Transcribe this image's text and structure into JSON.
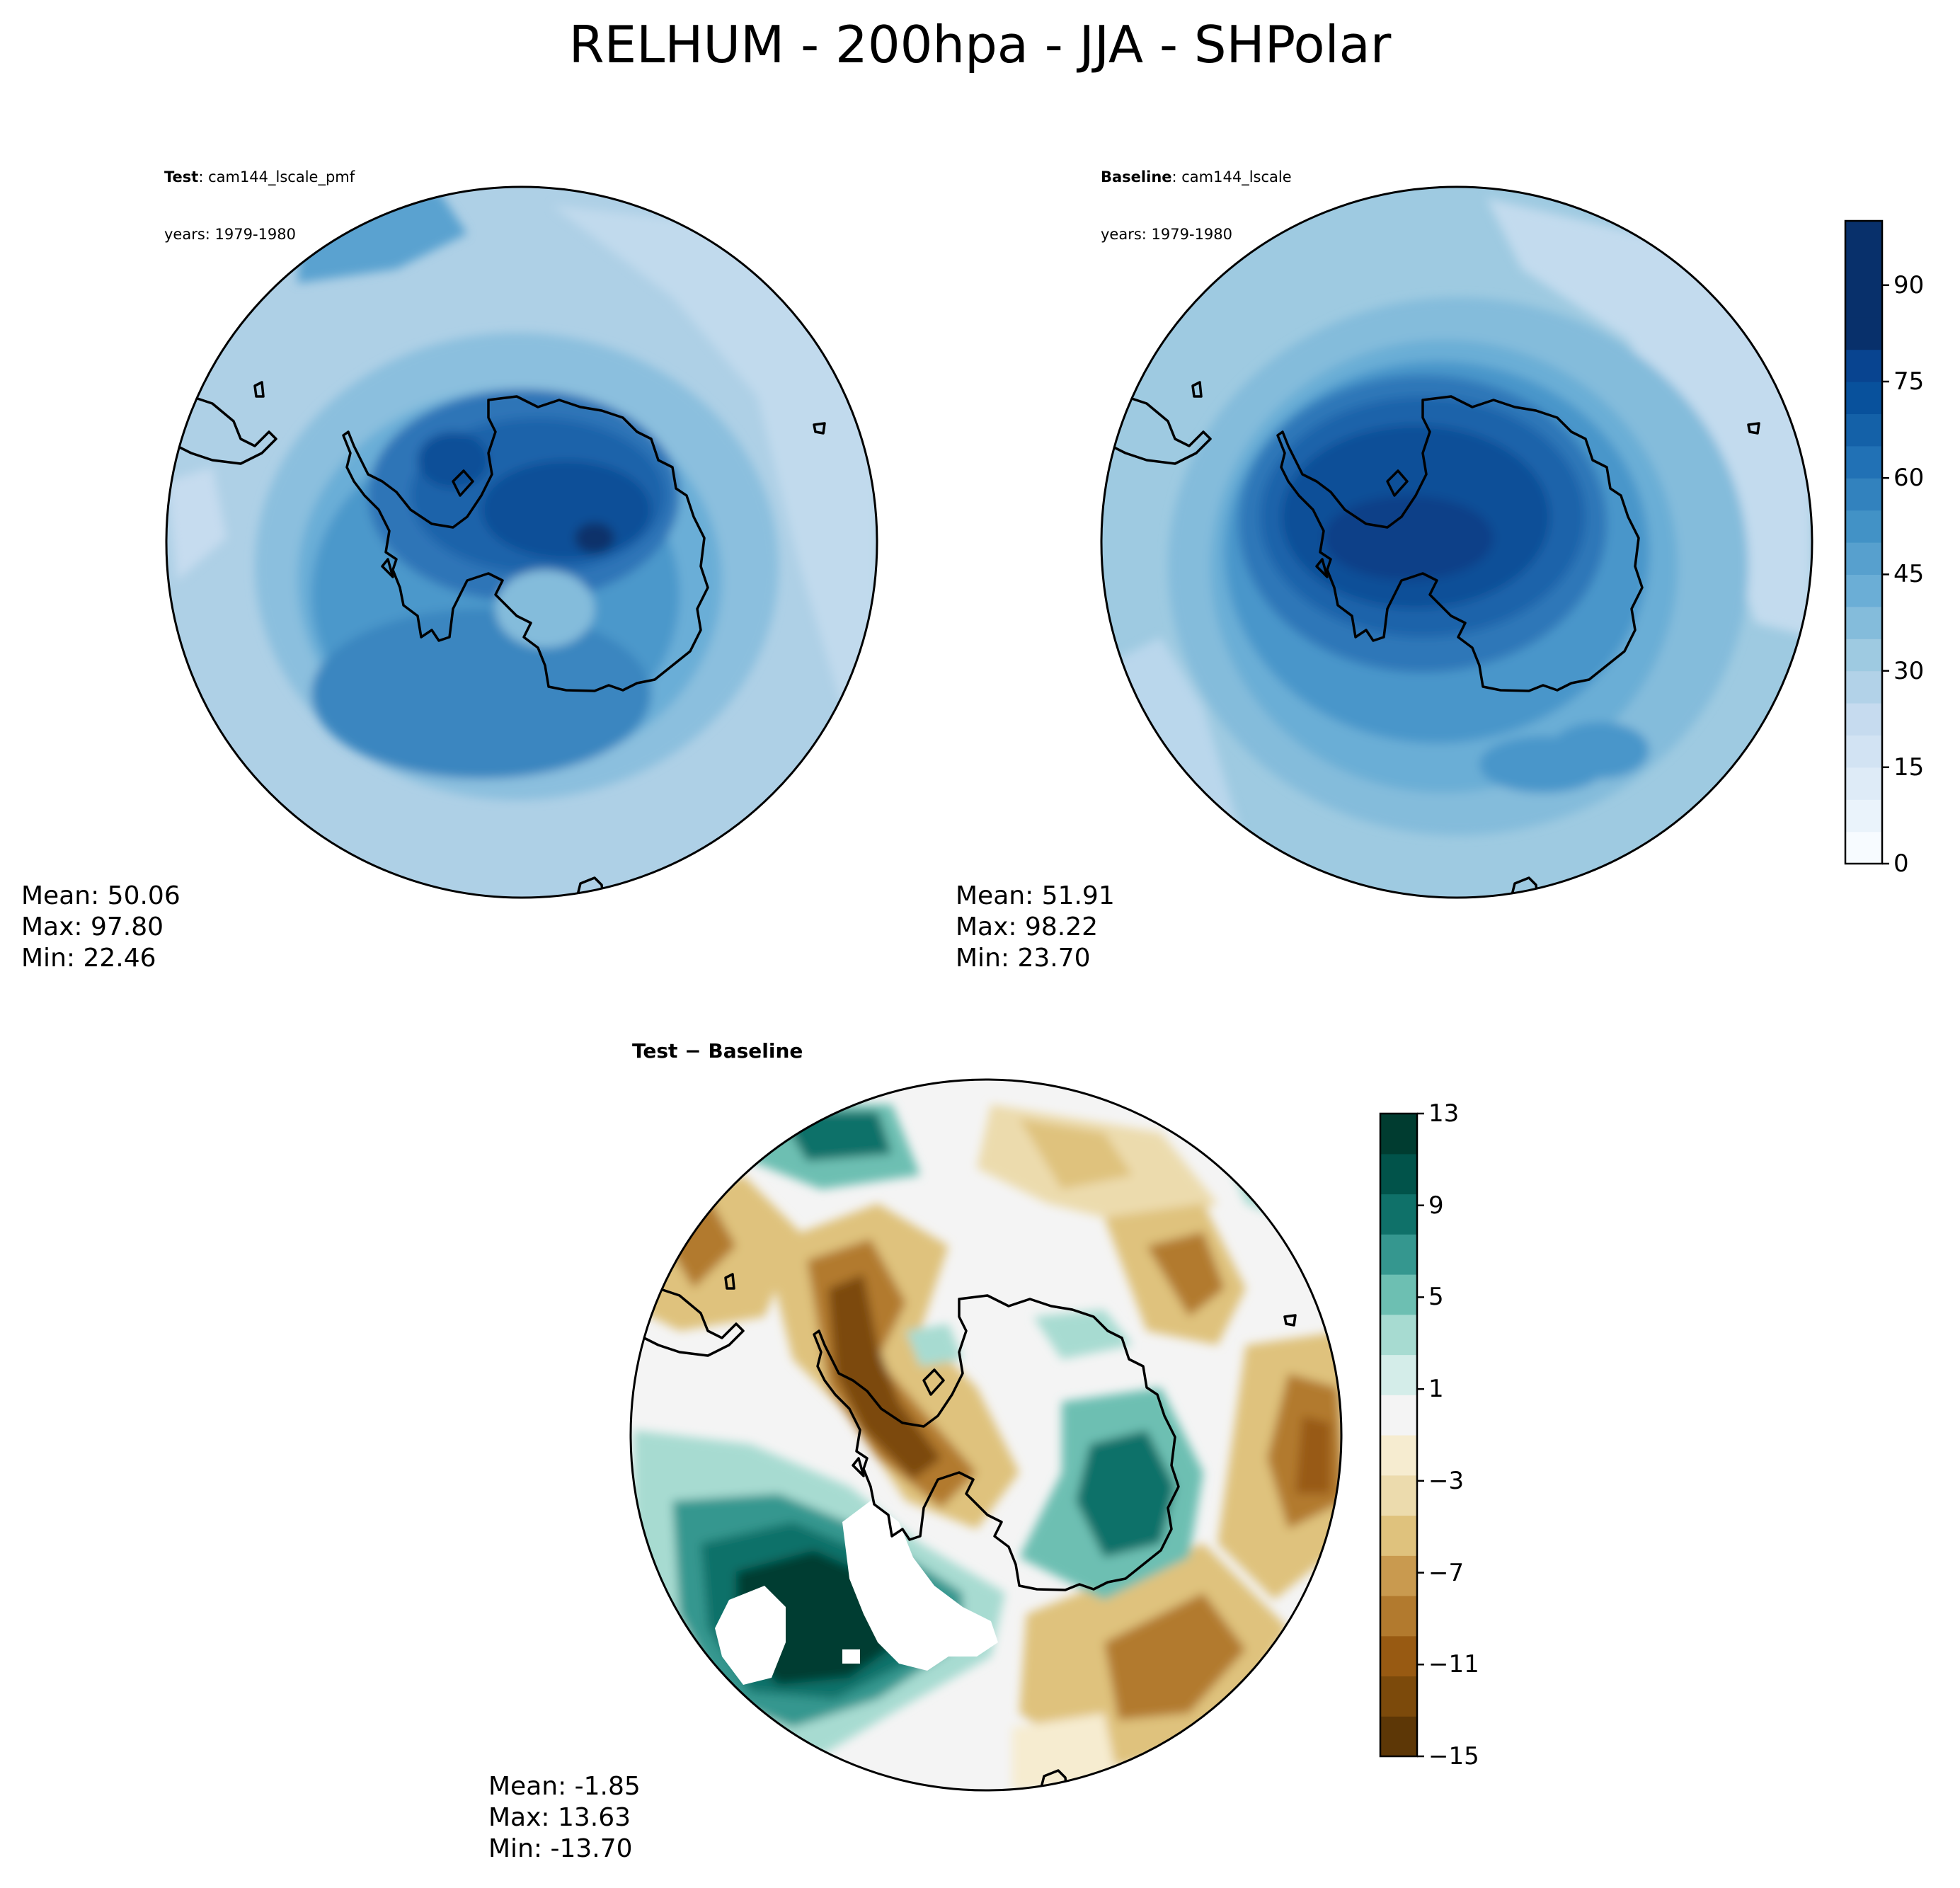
{
  "suptitle": "RELHUM - 200hpa - JJA - SHPolar",
  "test_panel": {
    "label_bold": "Test",
    "label_name": ": cam144_lscale_pmf",
    "years": "years: 1979-1980",
    "mean": "Mean: 50.06",
    "max": "Max: 97.80",
    "min": "Min: 22.46"
  },
  "baseline_panel": {
    "label_bold": "Baseline",
    "label_name": ": cam144_lscale",
    "years": "years: 1979-1980",
    "mean": "Mean: 51.91",
    "max": "Max: 98.22",
    "min": "Min: 23.70"
  },
  "diff_panel": {
    "title": "Test − Baseline",
    "mean": "Mean: -1.85",
    "max": "Max: 13.63",
    "min": "Min: -13.70"
  },
  "colorbar_main": {
    "ticks": [
      "0",
      "15",
      "30",
      "45",
      "60",
      "75",
      "90"
    ],
    "tick_values": [
      0,
      15,
      30,
      45,
      60,
      75,
      90
    ],
    "range": [
      0,
      100
    ],
    "levels": 20,
    "colormap": "Blues",
    "colors": [
      "#f7fbff",
      "#eaf3fb",
      "#deebf7",
      "#d2e3f3",
      "#c6dbef",
      "#b2d2e8",
      "#9ecae1",
      "#84bcdb",
      "#6baed6",
      "#57a0ce",
      "#4292c6",
      "#3282be",
      "#2171b5",
      "#1461a8",
      "#08519c",
      "#084490",
      "#08306b",
      "#08306b",
      "#08306b",
      "#08306b"
    ]
  },
  "colorbar_diff": {
    "ticks": [
      "13",
      "9",
      "5",
      "1",
      "−3",
      "−7",
      "−11",
      "−15"
    ],
    "tick_values": [
      13,
      9,
      5,
      1,
      -3,
      -7,
      -11,
      -15
    ],
    "range": [
      -15,
      13
    ],
    "colormap": "BrBG",
    "colors_low_to_high": [
      "#5d3706",
      "#7c4a0b",
      "#985a12",
      "#b27a2e",
      "#c99a4f",
      "#dfc27d",
      "#ecdbad",
      "#f6ecd0",
      "#f4f4f4",
      "#d4ede9",
      "#a7dbd1",
      "#6dbfb2",
      "#35978f",
      "#0f7169",
      "#01534a",
      "#003c30"
    ]
  },
  "map_colors": {
    "coast": "#000000",
    "frame": "#000000"
  }
}
